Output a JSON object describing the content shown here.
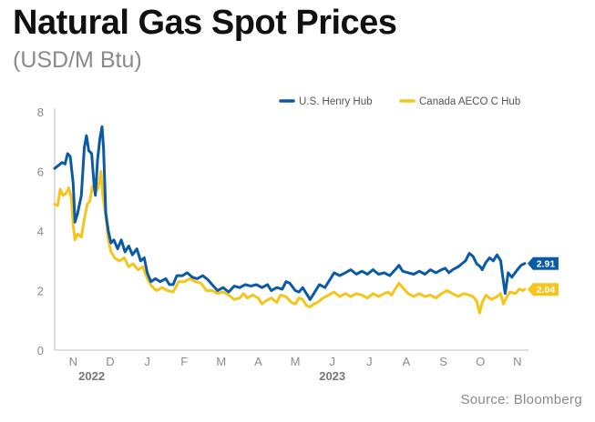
{
  "header": {
    "title": "Natural Gas Spot Prices",
    "subtitle": "(USD/M Btu)"
  },
  "footer": {
    "source": "Source: Bloomberg"
  },
  "chart_data": {
    "type": "line",
    "title": "Natural Gas Spot Prices",
    "subtitle": "(USD/M Btu)",
    "xlabel": "",
    "ylabel": "",
    "ylim": [
      0,
      8
    ],
    "yticks": [
      0,
      2,
      4,
      6,
      8
    ],
    "xlim": [
      0,
      12.8
    ],
    "xticks": [
      {
        "label": "N",
        "x": 0.5
      },
      {
        "label": "D",
        "x": 1.5
      },
      {
        "label": "J",
        "x": 2.5
      },
      {
        "label": "F",
        "x": 3.5
      },
      {
        "label": "M",
        "x": 4.5
      },
      {
        "label": "A",
        "x": 5.5
      },
      {
        "label": "M",
        "x": 6.5
      },
      {
        "label": "J",
        "x": 7.5
      },
      {
        "label": "J",
        "x": 8.5
      },
      {
        "label": "A",
        "x": 9.5
      },
      {
        "label": "S",
        "x": 10.5
      },
      {
        "label": "O",
        "x": 11.5
      },
      {
        "label": "N",
        "x": 12.5
      }
    ],
    "year_labels": [
      {
        "label": "2022",
        "x": 1.0
      },
      {
        "label": "2023",
        "x": 7.5
      }
    ],
    "grid": false,
    "legend_position": "top-right",
    "series": [
      {
        "name": "U.S. Henry Hub",
        "color": "#0b5aa6",
        "end_label": "2.91",
        "points": [
          [
            0.0,
            6.1
          ],
          [
            0.1,
            6.2
          ],
          [
            0.2,
            6.3
          ],
          [
            0.28,
            6.25
          ],
          [
            0.35,
            6.6
          ],
          [
            0.42,
            6.5
          ],
          [
            0.5,
            5.6
          ],
          [
            0.55,
            4.3
          ],
          [
            0.62,
            4.6
          ],
          [
            0.72,
            5.2
          ],
          [
            0.8,
            6.8
          ],
          [
            0.86,
            7.2
          ],
          [
            0.92,
            6.7
          ],
          [
            1.0,
            6.6
          ],
          [
            1.06,
            5.6
          ],
          [
            1.1,
            5.2
          ],
          [
            1.16,
            6.4
          ],
          [
            1.22,
            7.1
          ],
          [
            1.28,
            7.5
          ],
          [
            1.32,
            6.8
          ],
          [
            1.38,
            4.6
          ],
          [
            1.45,
            4.0
          ],
          [
            1.52,
            3.6
          ],
          [
            1.6,
            3.7
          ],
          [
            1.7,
            3.4
          ],
          [
            1.8,
            3.7
          ],
          [
            1.9,
            3.3
          ],
          [
            2.0,
            3.5
          ],
          [
            2.1,
            3.2
          ],
          [
            2.22,
            3.4
          ],
          [
            2.32,
            3.0
          ],
          [
            2.42,
            3.1
          ],
          [
            2.5,
            2.6
          ],
          [
            2.6,
            2.3
          ],
          [
            2.72,
            2.4
          ],
          [
            2.85,
            2.3
          ],
          [
            3.0,
            2.4
          ],
          [
            3.1,
            2.2
          ],
          [
            3.2,
            2.2
          ],
          [
            3.3,
            2.5
          ],
          [
            3.45,
            2.5
          ],
          [
            3.58,
            2.6
          ],
          [
            3.72,
            2.45
          ],
          [
            3.85,
            2.4
          ],
          [
            4.0,
            2.5
          ],
          [
            4.15,
            2.35
          ],
          [
            4.25,
            2.2
          ],
          [
            4.4,
            2.0
          ],
          [
            4.55,
            2.1
          ],
          [
            4.7,
            1.95
          ],
          [
            4.85,
            2.15
          ],
          [
            5.0,
            2.1
          ],
          [
            5.15,
            2.2
          ],
          [
            5.3,
            2.15
          ],
          [
            5.45,
            2.2
          ],
          [
            5.6,
            2.1
          ],
          [
            5.75,
            2.2
          ],
          [
            5.85,
            2.0
          ],
          [
            6.0,
            2.1
          ],
          [
            6.15,
            2.05
          ],
          [
            6.25,
            2.3
          ],
          [
            6.35,
            2.25
          ],
          [
            6.5,
            2.0
          ],
          [
            6.6,
            1.95
          ],
          [
            6.7,
            2.1
          ],
          [
            6.8,
            1.9
          ],
          [
            6.9,
            1.7
          ],
          [
            7.0,
            1.9
          ],
          [
            7.15,
            2.2
          ],
          [
            7.3,
            2.1
          ],
          [
            7.45,
            2.4
          ],
          [
            7.55,
            2.6
          ],
          [
            7.7,
            2.5
          ],
          [
            7.85,
            2.6
          ],
          [
            8.0,
            2.7
          ],
          [
            8.15,
            2.55
          ],
          [
            8.3,
            2.65
          ],
          [
            8.45,
            2.55
          ],
          [
            8.6,
            2.7
          ],
          [
            8.75,
            2.55
          ],
          [
            8.9,
            2.6
          ],
          [
            9.05,
            2.5
          ],
          [
            9.2,
            2.7
          ],
          [
            9.3,
            2.85
          ],
          [
            9.4,
            2.65
          ],
          [
            9.55,
            2.6
          ],
          [
            9.7,
            2.55
          ],
          [
            9.85,
            2.65
          ],
          [
            10.0,
            2.55
          ],
          [
            10.15,
            2.7
          ],
          [
            10.3,
            2.6
          ],
          [
            10.45,
            2.7
          ],
          [
            10.55,
            2.75
          ],
          [
            10.65,
            2.6
          ],
          [
            10.75,
            2.7
          ],
          [
            10.9,
            2.8
          ],
          [
            11.0,
            2.9
          ],
          [
            11.1,
            3.0
          ],
          [
            11.2,
            3.25
          ],
          [
            11.3,
            3.15
          ],
          [
            11.4,
            2.9
          ],
          [
            11.5,
            2.8
          ],
          [
            11.55,
            2.7
          ],
          [
            11.65,
            2.95
          ],
          [
            11.75,
            3.1
          ],
          [
            11.85,
            3.0
          ],
          [
            11.95,
            3.2
          ],
          [
            12.05,
            3.0
          ],
          [
            12.1,
            2.5
          ],
          [
            12.17,
            1.9
          ],
          [
            12.25,
            2.6
          ],
          [
            12.35,
            2.45
          ],
          [
            12.5,
            2.7
          ],
          [
            12.6,
            2.85
          ],
          [
            12.7,
            2.91
          ]
        ]
      },
      {
        "name": "Canada AECO C Hub",
        "color": "#f6c51c",
        "end_label": "2.04",
        "points": [
          [
            0.0,
            4.9
          ],
          [
            0.08,
            4.85
          ],
          [
            0.15,
            5.4
          ],
          [
            0.22,
            5.2
          ],
          [
            0.3,
            5.25
          ],
          [
            0.38,
            5.45
          ],
          [
            0.45,
            5.1
          ],
          [
            0.5,
            4.2
          ],
          [
            0.55,
            3.7
          ],
          [
            0.62,
            3.9
          ],
          [
            0.72,
            3.8
          ],
          [
            0.8,
            4.4
          ],
          [
            0.88,
            4.9
          ],
          [
            0.95,
            5.0
          ],
          [
            1.02,
            5.5
          ],
          [
            1.1,
            5.3
          ],
          [
            1.18,
            5.45
          ],
          [
            1.25,
            6.0
          ],
          [
            1.3,
            5.2
          ],
          [
            1.38,
            4.5
          ],
          [
            1.45,
            3.7
          ],
          [
            1.52,
            3.3
          ],
          [
            1.62,
            3.1
          ],
          [
            1.75,
            3.0
          ],
          [
            1.88,
            3.1
          ],
          [
            2.0,
            2.8
          ],
          [
            2.12,
            2.9
          ],
          [
            2.25,
            2.7
          ],
          [
            2.38,
            2.8
          ],
          [
            2.5,
            2.4
          ],
          [
            2.62,
            2.15
          ],
          [
            2.75,
            2.0
          ],
          [
            2.9,
            2.1
          ],
          [
            3.05,
            2.0
          ],
          [
            3.2,
            1.95
          ],
          [
            3.35,
            2.3
          ],
          [
            3.5,
            2.3
          ],
          [
            3.65,
            2.4
          ],
          [
            3.8,
            2.3
          ],
          [
            3.95,
            2.25
          ],
          [
            4.1,
            2.0
          ],
          [
            4.25,
            2.0
          ],
          [
            4.4,
            1.9
          ],
          [
            4.55,
            1.95
          ],
          [
            4.7,
            1.85
          ],
          [
            4.85,
            1.7
          ],
          [
            5.0,
            1.75
          ],
          [
            5.1,
            1.9
          ],
          [
            5.2,
            1.75
          ],
          [
            5.35,
            1.85
          ],
          [
            5.5,
            1.75
          ],
          [
            5.6,
            1.55
          ],
          [
            5.7,
            1.65
          ],
          [
            5.85,
            1.75
          ],
          [
            6.0,
            1.6
          ],
          [
            6.1,
            1.85
          ],
          [
            6.25,
            1.8
          ],
          [
            6.4,
            1.6
          ],
          [
            6.5,
            1.55
          ],
          [
            6.6,
            1.75
          ],
          [
            6.7,
            1.7
          ],
          [
            6.8,
            1.5
          ],
          [
            6.9,
            1.45
          ],
          [
            7.0,
            1.55
          ],
          [
            7.1,
            1.6
          ],
          [
            7.25,
            1.75
          ],
          [
            7.4,
            1.85
          ],
          [
            7.55,
            1.95
          ],
          [
            7.7,
            1.8
          ],
          [
            7.85,
            1.9
          ],
          [
            8.0,
            1.8
          ],
          [
            8.15,
            1.9
          ],
          [
            8.3,
            1.85
          ],
          [
            8.45,
            1.75
          ],
          [
            8.6,
            1.9
          ],
          [
            8.75,
            1.8
          ],
          [
            8.9,
            1.9
          ],
          [
            9.0,
            1.95
          ],
          [
            9.1,
            1.85
          ],
          [
            9.2,
            2.05
          ],
          [
            9.3,
            2.25
          ],
          [
            9.4,
            2.1
          ],
          [
            9.55,
            1.9
          ],
          [
            9.7,
            1.8
          ],
          [
            9.85,
            1.9
          ],
          [
            10.0,
            1.8
          ],
          [
            10.15,
            1.85
          ],
          [
            10.3,
            1.75
          ],
          [
            10.45,
            1.9
          ],
          [
            10.6,
            2.0
          ],
          [
            10.75,
            1.9
          ],
          [
            10.9,
            1.8
          ],
          [
            11.05,
            1.9
          ],
          [
            11.2,
            1.85
          ],
          [
            11.3,
            1.8
          ],
          [
            11.4,
            1.65
          ],
          [
            11.48,
            1.25
          ],
          [
            11.55,
            1.6
          ],
          [
            11.65,
            1.85
          ],
          [
            11.8,
            1.7
          ],
          [
            11.95,
            1.8
          ],
          [
            12.05,
            1.9
          ],
          [
            12.12,
            1.55
          ],
          [
            12.2,
            1.75
          ],
          [
            12.3,
            1.95
          ],
          [
            12.45,
            1.9
          ],
          [
            12.55,
            2.05
          ],
          [
            12.65,
            2.0
          ],
          [
            12.7,
            2.04
          ]
        ]
      }
    ]
  }
}
